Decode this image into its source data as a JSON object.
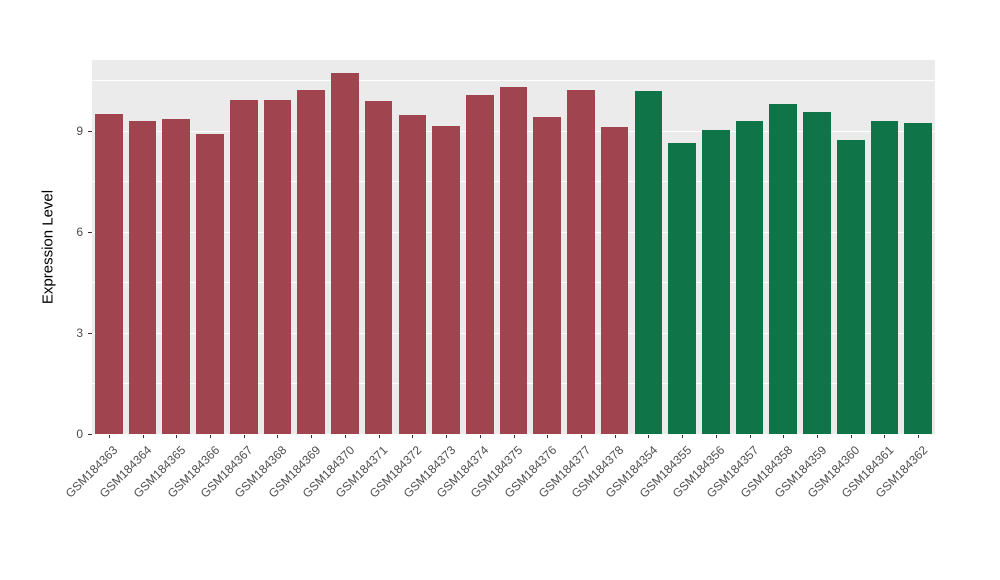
{
  "chart_data": {
    "type": "bar",
    "title": "",
    "xlabel": "",
    "ylabel": "Expression Level",
    "ylim": [
      0,
      11.1
    ],
    "yticks": [
      0,
      3,
      6,
      9
    ],
    "minor_gridlines": [
      1.5,
      4.5,
      7.5,
      10.5
    ],
    "grid": "on",
    "legend_position": "none",
    "categories": [
      "GSM184363",
      "GSM184364",
      "GSM184365",
      "GSM184366",
      "GSM184367",
      "GSM184368",
      "GSM184369",
      "GSM184370",
      "GSM184371",
      "GSM184372",
      "GSM184373",
      "GSM184374",
      "GSM184375",
      "GSM184376",
      "GSM184377",
      "GSM184378",
      "GSM184354",
      "GSM184355",
      "GSM184356",
      "GSM184357",
      "GSM184358",
      "GSM184359",
      "GSM184360",
      "GSM184361",
      "GSM184362"
    ],
    "values": [
      9.5,
      9.3,
      9.35,
      8.9,
      9.9,
      9.92,
      10.2,
      10.72,
      9.88,
      9.48,
      9.15,
      10.05,
      10.3,
      9.42,
      10.2,
      9.12,
      10.18,
      8.65,
      9.02,
      9.28,
      9.8,
      9.55,
      8.72,
      9.3,
      9.22
    ],
    "bar_groups": [
      "red",
      "red",
      "red",
      "red",
      "red",
      "red",
      "red",
      "red",
      "red",
      "red",
      "red",
      "red",
      "red",
      "red",
      "red",
      "red",
      "green",
      "green",
      "green",
      "green",
      "green",
      "green",
      "green",
      "green",
      "green"
    ]
  },
  "colors": {
    "red": "#A04550",
    "green": "#0F7447",
    "panel_bg": "#EBEBEB",
    "gridline": "#FFFFFF",
    "tick_text": "#4D4D4D",
    "axis_title": "#000000"
  }
}
